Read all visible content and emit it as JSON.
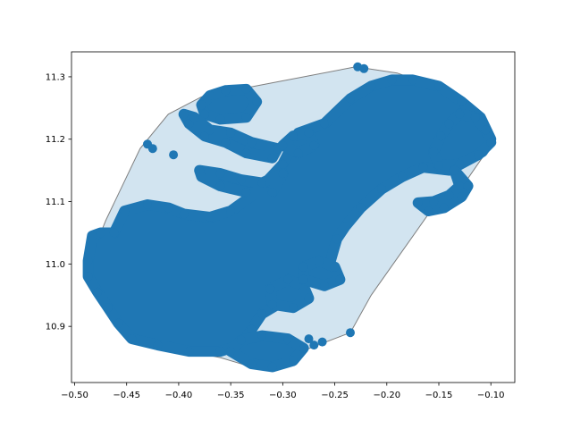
{
  "chart_data": {
    "type": "scatter",
    "title": "",
    "xlabel": "",
    "ylabel": "",
    "xlim": [
      -0.503,
      -0.077
    ],
    "ylim": [
      10.81,
      11.34
    ],
    "grid": false,
    "legend": "none",
    "colors": {
      "points": "#1f77b4",
      "hull_fill": "#1f77b4",
      "hull_fill_alpha": 0.2,
      "hull_edge": "#7f7f7f"
    },
    "x_ticks": [
      {
        "value": -0.5,
        "label": "−0.50"
      },
      {
        "value": -0.45,
        "label": "−0.45"
      },
      {
        "value": -0.4,
        "label": "−0.40"
      },
      {
        "value": -0.35,
        "label": "−0.35"
      },
      {
        "value": -0.3,
        "label": "−0.30"
      },
      {
        "value": -0.25,
        "label": "−0.25"
      },
      {
        "value": -0.2,
        "label": "−0.20"
      },
      {
        "value": -0.15,
        "label": "−0.15"
      },
      {
        "value": -0.1,
        "label": "−0.10"
      }
    ],
    "y_ticks": [
      {
        "value": 10.9,
        "label": "10.9"
      },
      {
        "value": 11.0,
        "label": "11.0"
      },
      {
        "value": 11.1,
        "label": "11.1"
      },
      {
        "value": 11.2,
        "label": "11.2"
      },
      {
        "value": 11.3,
        "label": "11.3"
      }
    ],
    "hull": [
      [
        -0.23,
        11.316
      ],
      [
        -0.19,
        11.306
      ],
      [
        -0.155,
        11.285
      ],
      [
        -0.125,
        11.255
      ],
      [
        -0.098,
        11.195
      ],
      [
        -0.125,
        11.13
      ],
      [
        -0.16,
        11.08
      ],
      [
        -0.215,
        10.95
      ],
      [
        -0.235,
        10.89
      ],
      [
        -0.29,
        10.855
      ],
      [
        -0.32,
        10.83
      ],
      [
        -0.36,
        10.85
      ],
      [
        -0.42,
        10.87
      ],
      [
        -0.455,
        10.9
      ],
      [
        -0.47,
        10.93
      ],
      [
        -0.487,
        11.0
      ],
      [
        -0.47,
        11.07
      ],
      [
        -0.437,
        11.185
      ],
      [
        -0.41,
        11.24
      ],
      [
        -0.378,
        11.268
      ],
      [
        -0.33,
        11.284
      ],
      [
        -0.23,
        11.316
      ]
    ],
    "point_groups": [
      {
        "name": "main-mass",
        "points": [
          [
            -0.487,
            11.005
          ],
          [
            -0.483,
            11.045
          ],
          [
            -0.475,
            11.05
          ],
          [
            -0.462,
            11.05
          ],
          [
            -0.452,
            11.085
          ],
          [
            -0.43,
            11.095
          ],
          [
            -0.41,
            11.09
          ],
          [
            -0.395,
            11.08
          ],
          [
            -0.37,
            11.075
          ],
          [
            -0.35,
            11.085
          ],
          [
            -0.325,
            11.115
          ],
          [
            -0.3,
            11.16
          ],
          [
            -0.285,
            11.21
          ],
          [
            -0.26,
            11.225
          ],
          [
            -0.235,
            11.265
          ],
          [
            -0.215,
            11.285
          ],
          [
            -0.195,
            11.295
          ],
          [
            -0.175,
            11.295
          ],
          [
            -0.15,
            11.285
          ],
          [
            -0.128,
            11.26
          ],
          [
            -0.11,
            11.235
          ],
          [
            -0.1,
            11.2
          ],
          [
            -0.108,
            11.18
          ],
          [
            -0.118,
            11.17
          ],
          [
            -0.14,
            11.15
          ],
          [
            -0.165,
            11.155
          ],
          [
            -0.185,
            11.14
          ],
          [
            -0.205,
            11.12
          ],
          [
            -0.225,
            11.09
          ],
          [
            -0.24,
            11.06
          ],
          [
            -0.248,
            11.04
          ],
          [
            -0.255,
            11.0
          ],
          [
            -0.27,
            10.99
          ],
          [
            -0.285,
            10.96
          ],
          [
            -0.3,
            10.94
          ],
          [
            -0.32,
            10.92
          ],
          [
            -0.33,
            10.895
          ],
          [
            -0.34,
            10.87
          ],
          [
            -0.36,
            10.86
          ],
          [
            -0.39,
            10.86
          ],
          [
            -0.42,
            10.87
          ],
          [
            -0.445,
            10.88
          ],
          [
            -0.458,
            10.905
          ],
          [
            -0.468,
            10.93
          ],
          [
            -0.478,
            10.955
          ],
          [
            -0.487,
            10.98
          ]
        ]
      },
      {
        "name": "top-left-lobe",
        "points": [
          [
            -0.378,
            11.255
          ],
          [
            -0.37,
            11.27
          ],
          [
            -0.355,
            11.278
          ],
          [
            -0.335,
            11.28
          ],
          [
            -0.325,
            11.26
          ],
          [
            -0.335,
            11.235
          ],
          [
            -0.36,
            11.232
          ],
          [
            -0.375,
            11.24
          ]
        ]
      },
      {
        "name": "upper-left-arm",
        "points": [
          [
            -0.395,
            11.24
          ],
          [
            -0.39,
            11.225
          ],
          [
            -0.375,
            11.205
          ],
          [
            -0.355,
            11.195
          ],
          [
            -0.335,
            11.178
          ],
          [
            -0.31,
            11.17
          ],
          [
            -0.305,
            11.185
          ],
          [
            -0.33,
            11.195
          ],
          [
            -0.35,
            11.21
          ],
          [
            -0.37,
            11.215
          ],
          [
            -0.385,
            11.235
          ]
        ]
      },
      {
        "name": "middle-left-arm",
        "points": [
          [
            -0.38,
            11.15
          ],
          [
            -0.36,
            11.145
          ],
          [
            -0.34,
            11.135
          ],
          [
            -0.32,
            11.13
          ],
          [
            -0.3,
            11.145
          ],
          [
            -0.31,
            11.115
          ],
          [
            -0.335,
            11.115
          ],
          [
            -0.36,
            11.125
          ],
          [
            -0.378,
            11.14
          ]
        ]
      },
      {
        "name": "upper-middle-blob",
        "points": [
          [
            -0.3,
            11.19
          ],
          [
            -0.29,
            11.205
          ],
          [
            -0.275,
            11.21
          ],
          [
            -0.27,
            11.19
          ],
          [
            -0.285,
            11.178
          ]
        ]
      },
      {
        "name": "right-lobe",
        "points": [
          [
            -0.13,
            11.24
          ],
          [
            -0.115,
            11.235
          ],
          [
            -0.105,
            11.215
          ],
          [
            -0.1,
            11.195
          ],
          [
            -0.112,
            11.175
          ],
          [
            -0.13,
            11.16
          ],
          [
            -0.15,
            11.158
          ],
          [
            -0.155,
            11.18
          ],
          [
            -0.148,
            11.205
          ],
          [
            -0.14,
            11.225
          ]
        ]
      },
      {
        "name": "right-tail",
        "points": [
          [
            -0.135,
            11.15
          ],
          [
            -0.13,
            11.125
          ],
          [
            -0.14,
            11.11
          ],
          [
            -0.155,
            11.1
          ],
          [
            -0.17,
            11.098
          ],
          [
            -0.16,
            11.085
          ],
          [
            -0.145,
            11.09
          ],
          [
            -0.128,
            11.108
          ],
          [
            -0.122,
            11.125
          ]
        ]
      },
      {
        "name": "lower-middle-blob",
        "points": [
          [
            -0.31,
            10.935
          ],
          [
            -0.29,
            10.93
          ],
          [
            -0.275,
            10.945
          ],
          [
            -0.28,
            10.965
          ],
          [
            -0.295,
            10.975
          ],
          [
            -0.312,
            10.96
          ]
        ]
      },
      {
        "name": "lower-right-blob",
        "points": [
          [
            -0.28,
            10.975
          ],
          [
            -0.26,
            10.965
          ],
          [
            -0.245,
            10.975
          ],
          [
            -0.25,
            10.995
          ],
          [
            -0.265,
            11.005
          ],
          [
            -0.28,
            10.995
          ]
        ]
      },
      {
        "name": "bottom-center",
        "points": [
          [
            -0.35,
            10.86
          ],
          [
            -0.33,
            10.84
          ],
          [
            -0.31,
            10.835
          ],
          [
            -0.29,
            10.845
          ],
          [
            -0.28,
            10.865
          ],
          [
            -0.295,
            10.88
          ],
          [
            -0.32,
            10.885
          ],
          [
            -0.34,
            10.878
          ]
        ]
      },
      {
        "name": "outliers",
        "points": [
          [
            -0.43,
            11.192
          ],
          [
            -0.425,
            11.185
          ],
          [
            -0.405,
            11.175
          ],
          [
            -0.228,
            11.316
          ],
          [
            -0.222,
            11.313
          ],
          [
            -0.235,
            10.89
          ],
          [
            -0.262,
            10.875
          ],
          [
            -0.27,
            10.87
          ],
          [
            -0.275,
            10.88
          ]
        ]
      }
    ]
  }
}
